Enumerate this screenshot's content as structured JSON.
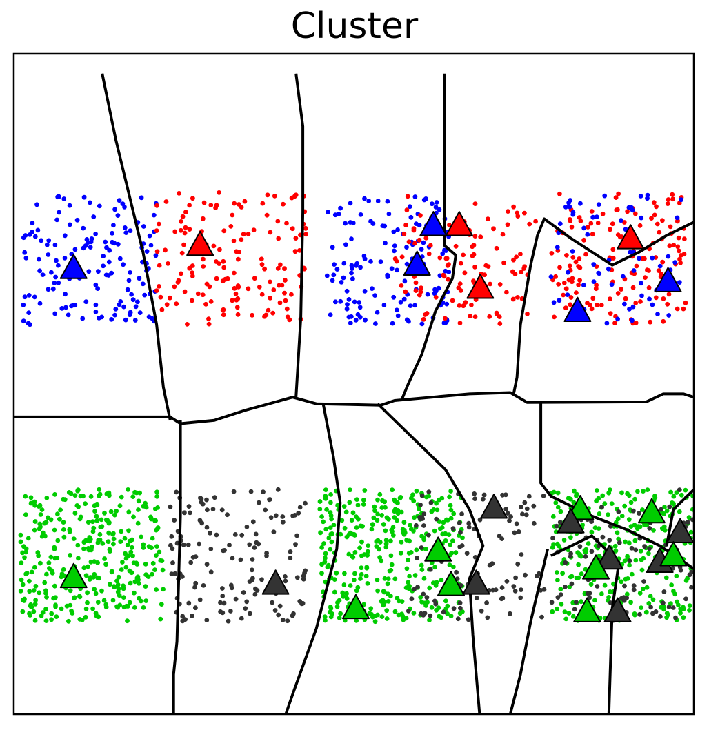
{
  "chart_data": {
    "type": "scatter",
    "title": "Cluster",
    "xlabel": "",
    "ylabel": "",
    "xlim": [
      0,
      10
    ],
    "ylim": [
      0,
      10
    ],
    "axis_ticks": false,
    "grid": false,
    "legend": "none",
    "colors": {
      "blue": "#0000ff",
      "red": "#ff0000",
      "green": "#00cc00",
      "dark": "#333333",
      "boundary": "#000000"
    },
    "point_regions": [
      {
        "color": "blue",
        "count": 150,
        "x": [
          0.1,
          2.1
        ],
        "y": [
          5.9,
          7.85
        ],
        "seed": 11
      },
      {
        "color": "red",
        "count": 150,
        "x": [
          2.1,
          4.3
        ],
        "y": [
          5.9,
          7.9
        ],
        "seed": 12
      },
      {
        "color": "blue",
        "count": 140,
        "x": [
          4.6,
          6.4
        ],
        "y": [
          5.9,
          7.85
        ],
        "seed": 13
      },
      {
        "color": "red",
        "count": 110,
        "x": [
          5.6,
          7.7
        ],
        "y": [
          5.9,
          7.85
        ],
        "seed": 14
      },
      {
        "color": "red",
        "count": 150,
        "x": [
          7.9,
          9.9
        ],
        "y": [
          5.9,
          7.9
        ],
        "seed": 15
      },
      {
        "color": "blue",
        "count": 70,
        "x": [
          7.9,
          9.9
        ],
        "y": [
          5.9,
          7.9
        ],
        "seed": 16
      },
      {
        "color": "green",
        "count": 330,
        "x": [
          0.1,
          2.2
        ],
        "y": [
          1.4,
          3.4
        ],
        "seed": 21
      },
      {
        "color": "dark",
        "count": 140,
        "x": [
          2.3,
          4.3
        ],
        "y": [
          1.4,
          3.4
        ],
        "seed": 22
      },
      {
        "color": "green",
        "count": 340,
        "x": [
          4.5,
          6.6
        ],
        "y": [
          1.4,
          3.4
        ],
        "seed": 23
      },
      {
        "color": "dark",
        "count": 110,
        "x": [
          5.8,
          7.8
        ],
        "y": [
          1.4,
          3.4
        ],
        "seed": 24
      },
      {
        "color": "green",
        "count": 280,
        "x": [
          7.9,
          10.0
        ],
        "y": [
          1.4,
          3.4
        ],
        "seed": 25
      },
      {
        "color": "dark",
        "count": 100,
        "x": [
          7.9,
          10.0
        ],
        "y": [
          1.4,
          3.4
        ],
        "seed": 26
      }
    ],
    "centroids": [
      {
        "x": 0.88,
        "y": 6.75,
        "color": "blue"
      },
      {
        "x": 2.74,
        "y": 7.1,
        "color": "red"
      },
      {
        "x": 6.17,
        "y": 7.4,
        "color": "blue"
      },
      {
        "x": 6.55,
        "y": 7.4,
        "color": "red"
      },
      {
        "x": 5.93,
        "y": 6.8,
        "color": "blue"
      },
      {
        "x": 6.86,
        "y": 6.45,
        "color": "red"
      },
      {
        "x": 9.07,
        "y": 7.2,
        "color": "red"
      },
      {
        "x": 8.29,
        "y": 6.1,
        "color": "blue"
      },
      {
        "x": 9.62,
        "y": 6.55,
        "color": "blue"
      },
      {
        "x": 0.88,
        "y": 2.07,
        "color": "green"
      },
      {
        "x": 3.85,
        "y": 1.97,
        "color": "dark"
      },
      {
        "x": 5.03,
        "y": 1.6,
        "color": "green"
      },
      {
        "x": 6.24,
        "y": 2.47,
        "color": "green"
      },
      {
        "x": 6.43,
        "y": 1.95,
        "color": "green"
      },
      {
        "x": 6.8,
        "y": 1.97,
        "color": "dark"
      },
      {
        "x": 7.06,
        "y": 3.12,
        "color": "dark"
      },
      {
        "x": 8.33,
        "y": 3.1,
        "color": "green"
      },
      {
        "x": 8.19,
        "y": 2.9,
        "color": "dark"
      },
      {
        "x": 9.38,
        "y": 3.05,
        "color": "green"
      },
      {
        "x": 9.8,
        "y": 2.75,
        "color": "dark"
      },
      {
        "x": 8.76,
        "y": 2.35,
        "color": "dark"
      },
      {
        "x": 8.56,
        "y": 2.2,
        "color": "green"
      },
      {
        "x": 9.5,
        "y": 2.3,
        "color": "dark"
      },
      {
        "x": 9.7,
        "y": 2.4,
        "color": "green"
      },
      {
        "x": 8.43,
        "y": 1.55,
        "color": "green"
      },
      {
        "x": 8.88,
        "y": 1.55,
        "color": "dark"
      }
    ],
    "boundaries": [
      [
        [
          0.0,
          4.5
        ],
        [
          2.3,
          4.5
        ],
        [
          2.45,
          4.4
        ],
        [
          2.95,
          4.45
        ],
        [
          3.4,
          4.6
        ],
        [
          4.1,
          4.8
        ],
        [
          4.45,
          4.7
        ],
        [
          5.4,
          4.68
        ],
        [
          5.6,
          4.75
        ],
        [
          6.7,
          4.85
        ],
        [
          7.3,
          4.87
        ],
        [
          7.55,
          4.72
        ],
        [
          9.3,
          4.73
        ],
        [
          9.55,
          4.85
        ],
        [
          9.85,
          4.85
        ],
        [
          10.0,
          4.8
        ]
      ],
      [
        [
          1.3,
          9.7
        ],
        [
          1.5,
          8.7
        ],
        [
          1.9,
          7.0
        ],
        [
          2.1,
          5.9
        ],
        [
          2.2,
          4.95
        ],
        [
          2.3,
          4.45
        ]
      ],
      [
        [
          4.15,
          9.7
        ],
        [
          4.25,
          8.9
        ],
        [
          4.25,
          7.6
        ],
        [
          4.22,
          6.0
        ],
        [
          4.15,
          4.8
        ]
      ],
      [
        [
          6.33,
          9.7
        ],
        [
          6.33,
          7.1
        ],
        [
          6.5,
          6.95
        ],
        [
          6.45,
          6.6
        ],
        [
          6.2,
          6.1
        ],
        [
          6.0,
          5.45
        ],
        [
          5.8,
          5.0
        ],
        [
          5.7,
          4.75
        ]
      ],
      [
        [
          7.35,
          4.85
        ],
        [
          7.4,
          5.1
        ],
        [
          7.45,
          5.9
        ],
        [
          7.6,
          6.8
        ],
        [
          7.7,
          7.25
        ],
        [
          7.8,
          7.5
        ],
        [
          8.2,
          7.2
        ],
        [
          8.8,
          6.8
        ],
        [
          9.2,
          7.0
        ],
        [
          9.6,
          7.25
        ],
        [
          10.0,
          7.45
        ]
      ],
      [
        [
          2.45,
          4.45
        ],
        [
          2.45,
          3.0
        ],
        [
          2.4,
          1.1
        ],
        [
          2.35,
          0.6
        ],
        [
          2.35,
          0.0
        ]
      ],
      [
        [
          4.55,
          4.7
        ],
        [
          4.7,
          3.9
        ],
        [
          4.8,
          3.2
        ],
        [
          4.75,
          2.5
        ],
        [
          4.45,
          1.3
        ],
        [
          4.1,
          0.3
        ],
        [
          4.0,
          0.0
        ]
      ],
      [
        [
          5.35,
          4.7
        ],
        [
          5.8,
          4.25
        ],
        [
          6.35,
          3.7
        ],
        [
          6.7,
          3.1
        ],
        [
          6.9,
          2.55
        ],
        [
          6.7,
          2.05
        ],
        [
          6.75,
          1.2
        ],
        [
          6.8,
          0.6
        ],
        [
          6.85,
          0.0
        ]
      ],
      [
        [
          7.75,
          4.73
        ],
        [
          7.75,
          3.5
        ],
        [
          7.9,
          3.3
        ],
        [
          8.5,
          3.0
        ],
        [
          9.0,
          2.8
        ],
        [
          9.5,
          2.55
        ],
        [
          10.0,
          2.2
        ]
      ],
      [
        [
          7.85,
          2.5
        ],
        [
          7.6,
          1.4
        ],
        [
          7.45,
          0.6
        ],
        [
          7.3,
          0.0
        ]
      ],
      [
        [
          7.9,
          2.4
        ],
        [
          8.5,
          2.7
        ],
        [
          8.9,
          2.3
        ],
        [
          8.8,
          1.6
        ],
        [
          8.75,
          0.0
        ]
      ],
      [
        [
          9.6,
          2.55
        ],
        [
          9.7,
          3.1
        ],
        [
          10.0,
          3.4
        ]
      ]
    ]
  }
}
